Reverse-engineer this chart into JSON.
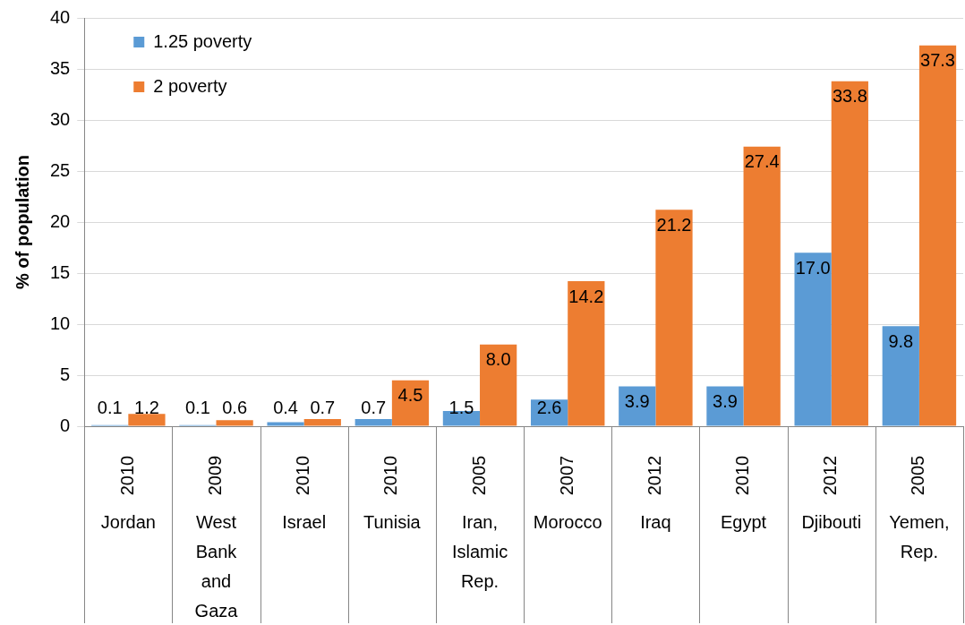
{
  "chart_data": {
    "type": "bar",
    "ylabel": "% of population",
    "categories": [
      "Jordan",
      "West Bank and Gaza",
      "Israel",
      "Tunisia",
      "Iran, Islamic Rep.",
      "Morocco",
      "Iraq",
      "Egypt",
      "Djibouti",
      "Yemen, Rep."
    ],
    "annotations": [
      "2010",
      "2009",
      "2010",
      "2010",
      "2005",
      "2007",
      "2012",
      "2010",
      "2012",
      "2005"
    ],
    "series": [
      {
        "name": "1.25 poverty",
        "color": "#5b9bd5",
        "values": [
          0.1,
          0.1,
          0.4,
          0.7,
          1.5,
          2.6,
          3.9,
          3.9,
          17.0,
          9.8
        ],
        "value_labels": [
          "0.1",
          "0.1",
          "0.4",
          "0.7",
          "1.5",
          "2.6",
          "3.9",
          "3.9",
          "17.0",
          "9.8"
        ]
      },
      {
        "name": "2 poverty",
        "color": "#ed7d31",
        "values": [
          1.2,
          0.6,
          0.7,
          4.5,
          8.0,
          14.2,
          21.2,
          27.4,
          33.8,
          37.3
        ],
        "value_labels": [
          "1.2",
          "0.6",
          "0.7",
          "4.5",
          "8.0",
          "14.2",
          "21.2",
          "27.4",
          "33.8",
          "37.3"
        ]
      }
    ],
    "ylim": [
      0,
      40
    ],
    "yticks": [
      0,
      5,
      10,
      15,
      20,
      25,
      30,
      35,
      40
    ],
    "grid": "y",
    "legend": "top left"
  }
}
